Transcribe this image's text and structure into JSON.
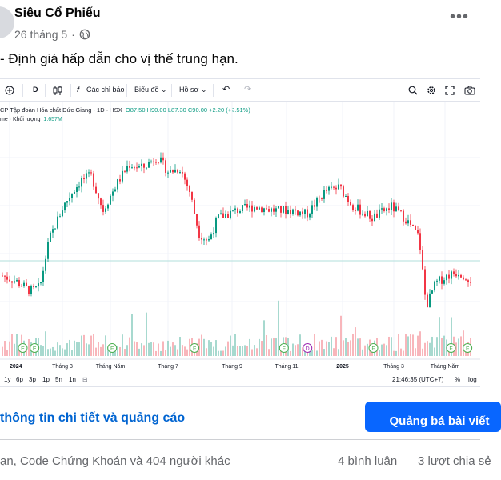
{
  "post": {
    "author": "Siêu Cổ Phiếu",
    "date": "26 tháng 5",
    "dot": "·",
    "more": "•••",
    "text": "- Định giá hấp dẫn cho vị thế trung hạn."
  },
  "toolbar": {
    "interval": "D",
    "indicators": "Các chỉ báo",
    "chart_type": "Biểu đồ",
    "profile": "Hồ sơ"
  },
  "legend": {
    "title": "CP Tập đoàn Hóa chất Đức Giang · 1D · HSX",
    "ohlc": "O87.50 H90.00 L87.30 C90.00 +2.20 (+2.51%)",
    "volume_label": "me · Khối lượng",
    "volume_value": "1.657M"
  },
  "chart_data": {
    "type": "candlestick",
    "title": "CP Tập đoàn Hóa chất Đức Giang · 1D · HSX",
    "x_tick_labels": [
      "2024",
      "Tháng 3",
      "Tháng Năm",
      "Tháng 7",
      "Tháng 9",
      "Tháng 11",
      "2025",
      "Tháng 3",
      "Tháng Năm"
    ],
    "close_trend": [
      {
        "t": 0,
        "v": 0.26
      },
      {
        "t": 0.03,
        "v": 0.23
      },
      {
        "t": 0.06,
        "v": 0.18
      },
      {
        "t": 0.08,
        "v": 0.2
      },
      {
        "t": 0.1,
        "v": 0.45
      },
      {
        "t": 0.13,
        "v": 0.62
      },
      {
        "t": 0.15,
        "v": 0.7
      },
      {
        "t": 0.17,
        "v": 0.76
      },
      {
        "t": 0.19,
        "v": 0.78
      },
      {
        "t": 0.215,
        "v": 0.6
      },
      {
        "t": 0.24,
        "v": 0.72
      },
      {
        "t": 0.27,
        "v": 0.84
      },
      {
        "t": 0.3,
        "v": 0.82
      },
      {
        "t": 0.33,
        "v": 0.88
      },
      {
        "t": 0.355,
        "v": 0.8
      },
      {
        "t": 0.38,
        "v": 0.82
      },
      {
        "t": 0.4,
        "v": 0.7
      },
      {
        "t": 0.42,
        "v": 0.48
      },
      {
        "t": 0.44,
        "v": 0.44
      },
      {
        "t": 0.46,
        "v": 0.56
      },
      {
        "t": 0.5,
        "v": 0.6
      },
      {
        "t": 0.54,
        "v": 0.62
      },
      {
        "t": 0.58,
        "v": 0.6
      },
      {
        "t": 0.62,
        "v": 0.6
      },
      {
        "t": 0.65,
        "v": 0.58
      },
      {
        "t": 0.69,
        "v": 0.7
      },
      {
        "t": 0.72,
        "v": 0.72
      },
      {
        "t": 0.75,
        "v": 0.62
      },
      {
        "t": 0.79,
        "v": 0.56
      },
      {
        "t": 0.83,
        "v": 0.62
      },
      {
        "t": 0.86,
        "v": 0.56
      },
      {
        "t": 0.89,
        "v": 0.46
      },
      {
        "t": 0.905,
        "v": 0.1
      },
      {
        "t": 0.925,
        "v": 0.22
      },
      {
        "t": 0.95,
        "v": 0.26
      },
      {
        "t": 0.975,
        "v": 0.28
      },
      {
        "t": 1.0,
        "v": 0.24
      }
    ],
    "events": [
      {
        "t": 0.045,
        "label": "E"
      },
      {
        "t": 0.07,
        "label": "E"
      },
      {
        "t": 0.235,
        "label": "F"
      },
      {
        "t": 0.41,
        "label": "F"
      },
      {
        "t": 0.6,
        "label": "F"
      },
      {
        "t": 0.65,
        "label": "D"
      },
      {
        "t": 0.79,
        "label": "F"
      },
      {
        "t": 0.955,
        "label": "F"
      },
      {
        "t": 0.99,
        "label": "F"
      }
    ],
    "grid": true,
    "colors": {
      "up": "#089981",
      "down": "#f23645",
      "vol_up": "#a7d9cf",
      "vol_down": "#f8b6bb",
      "baseline": "#b2dfdb"
    }
  },
  "bottom": {
    "ranges": [
      "1y",
      "6p",
      "3p",
      "1p",
      "5n",
      "1n"
    ],
    "time": "21:46:35 (UTC+7)",
    "percent": "%",
    "log": "log"
  },
  "footer": {
    "cta_link": "thông tin chi tiết và quảng cáo",
    "cta_button": "Quảng bá bài viết",
    "reactions": "ạn, Code Chứng Khoán và 404 người khác",
    "comments": "4 bình luận",
    "shares": "3 lượt chia sẻ"
  }
}
